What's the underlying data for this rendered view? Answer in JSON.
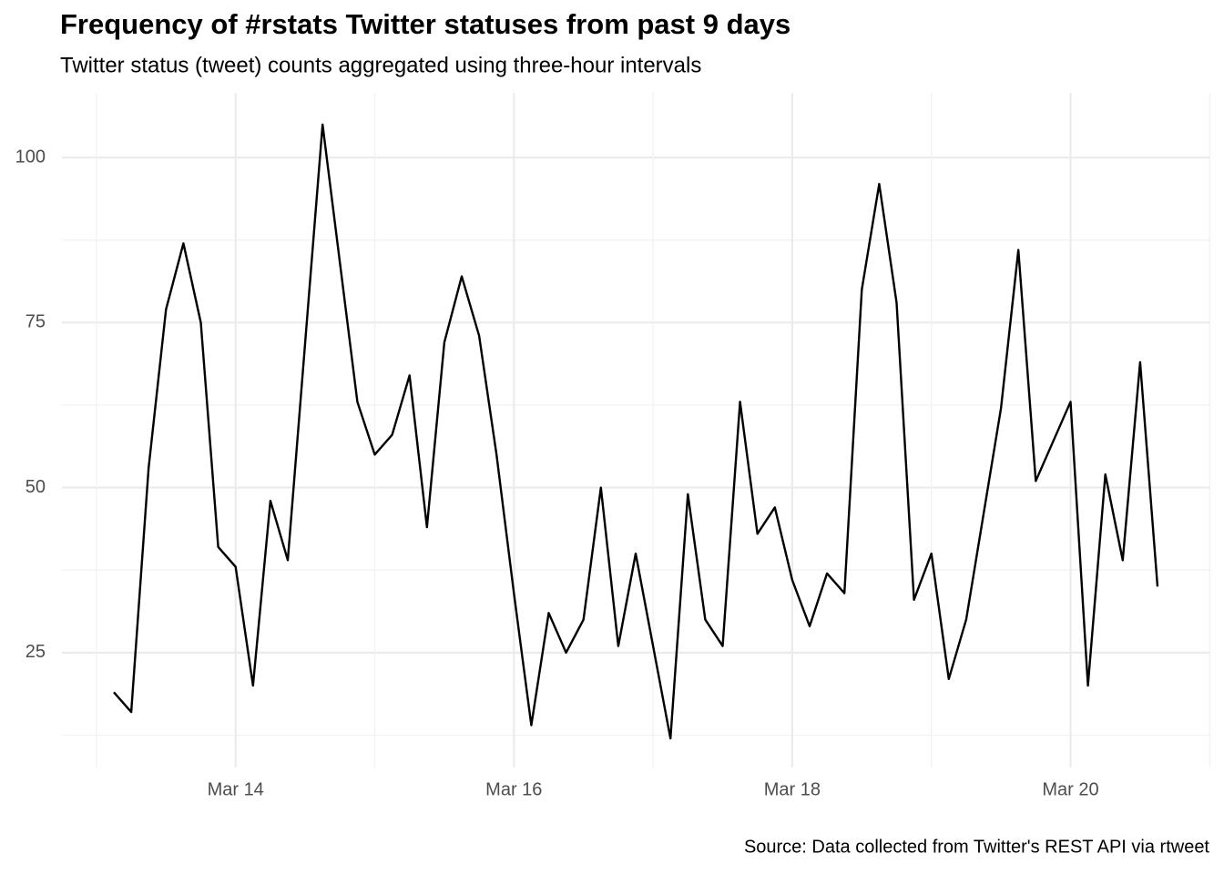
{
  "chart_data": {
    "type": "line",
    "title": "Frequency of #rstats Twitter statuses from past 9 days",
    "subtitle": "Twitter status (tweet) counts aggregated using three-hour intervals",
    "caption": "Source: Data collected from Twitter's REST API via rtweet",
    "categories": [
      null,
      null,
      null,
      null,
      null,
      null,
      null,
      "Mar 14",
      null,
      null,
      null,
      null,
      null,
      null,
      null,
      null,
      null,
      null,
      null,
      null,
      null,
      null,
      null,
      "Mar 16",
      null,
      null,
      null,
      null,
      null,
      null,
      null,
      null,
      null,
      null,
      null,
      null,
      null,
      null,
      null,
      "Mar 18",
      null,
      null,
      null,
      null,
      null,
      null,
      null,
      null,
      null,
      null,
      null,
      null,
      null,
      null,
      null,
      "Mar 20",
      null,
      null,
      null,
      null,
      null
    ],
    "values": [
      19,
      16,
      53,
      77,
      87,
      75,
      41,
      38,
      20,
      48,
      39,
      72,
      105,
      84,
      63,
      55,
      58,
      67,
      44,
      72,
      82,
      73,
      55,
      34,
      14,
      31,
      25,
      30,
      50,
      26,
      40,
      26,
      12,
      49,
      30,
      26,
      63,
      43,
      47,
      36,
      29,
      37,
      34,
      80,
      96,
      78,
      33,
      40,
      21,
      30,
      46,
      62,
      86,
      51,
      57,
      63,
      20,
      52,
      39,
      69,
      35
    ],
    "color": "#000000",
    "ylim": [
      7.6,
      109.8
    ],
    "yticks": [
      25,
      50,
      75,
      100
    ],
    "grid": true
  }
}
